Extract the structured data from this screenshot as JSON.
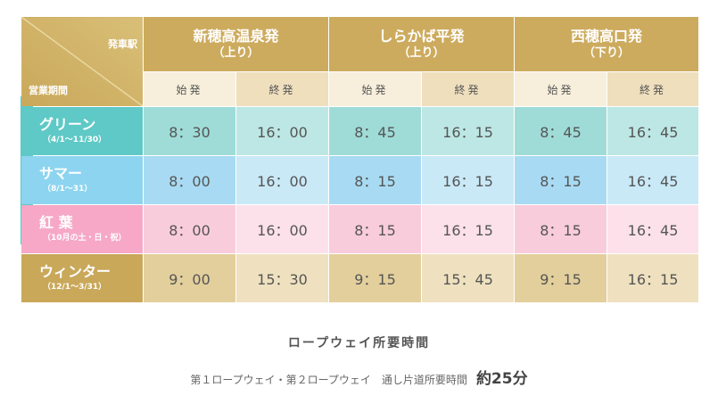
{
  "corner": {
    "top_label": "発車駅",
    "bottom_label": "営業期間"
  },
  "stations": [
    {
      "name": "新穂高温泉発",
      "direction": "（上り）"
    },
    {
      "name": "しらかば平発",
      "direction": "（上り）"
    },
    {
      "name": "西穂高口発",
      "direction": "（下り）"
    }
  ],
  "sub_headers": {
    "first": "始発",
    "last": "終発"
  },
  "rows": [
    {
      "name": "グリーン",
      "dates": "（4/1〜11/30）",
      "times": [
        "8：30",
        "16：00",
        "8：45",
        "16：15",
        "8：45",
        "16：45"
      ]
    },
    {
      "name": "サマー",
      "dates": "（8/1〜31）",
      "times": [
        "8：00",
        "16：00",
        "8：15",
        "16：15",
        "8：15",
        "16：45"
      ]
    },
    {
      "name": "紅 葉",
      "dates": "（10月の土・日・祝）",
      "times": [
        "8：00",
        "16：00",
        "8：15",
        "16：15",
        "8：15",
        "16：45"
      ]
    },
    {
      "name": "ウィンター",
      "dates": "（12/1〜3/31）",
      "times": [
        "9：00",
        "15：30",
        "9：15",
        "15：45",
        "9：15",
        "16：15"
      ]
    }
  ],
  "footer": {
    "title": "ロープウェイ所要時間",
    "description": "第１ロープウェイ・第２ロープウェイ　通し片道所要時間",
    "duration": "約25分"
  },
  "colors": {
    "gold": "#cdab5e",
    "green": "#5ec9c6",
    "summer": "#8dd4f0",
    "autumn": "#f6a8c6"
  }
}
